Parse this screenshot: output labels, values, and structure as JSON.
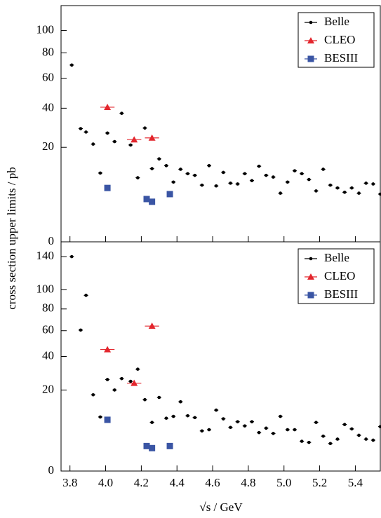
{
  "chart_data": [
    {
      "type": "scatter",
      "ylabel": "cross section upper limits / pb",
      "yscale": "sqrt",
      "ylim": [
        0,
        125
      ],
      "yticks": [
        0,
        20,
        40,
        60,
        80,
        100
      ],
      "series": [
        {
          "name": "Belle",
          "color": "#000000",
          "marker": "circle",
          "xerr": 0.012,
          "x": [
            3.81,
            3.86,
            3.89,
            3.93,
            3.97,
            4.01,
            4.05,
            4.09,
            4.14,
            4.18,
            4.22,
            4.26,
            4.3,
            4.34,
            4.38,
            4.42,
            4.46,
            4.5,
            4.54,
            4.58,
            4.62,
            4.66,
            4.7,
            4.74,
            4.78,
            4.82,
            4.86,
            4.9,
            4.94,
            4.98,
            5.02,
            5.06,
            5.1,
            5.14,
            5.18,
            5.22,
            5.26,
            5.3,
            5.34,
            5.38,
            5.42,
            5.46,
            5.5,
            5.54
          ],
          "values": [
            70,
            28.7,
            27,
            21.4,
            10.6,
            26.5,
            22.5,
            37,
            21,
            9.2,
            29,
            12,
            15.4,
            13,
            8,
            11.8,
            10.4,
            9.9,
            7.2,
            13,
            7,
            10.8,
            7.7,
            7.5,
            10.4,
            8.4,
            12.8,
            9.9,
            9.4,
            5.3,
            8,
            11.3,
            10.4,
            8.7,
            5.8,
            11.8,
            7.2,
            6.5,
            5.5,
            6.5,
            5.3,
            7.7,
            7.5,
            5.1
          ]
        },
        {
          "name": "CLEO",
          "color": "#e3262d",
          "marker": "triangle",
          "xerr": 0.04,
          "x": [
            4.01,
            4.16,
            4.26
          ],
          "values": [
            40.6,
            23.4,
            24.2
          ]
        },
        {
          "name": "BESIII",
          "color": "#3a55a4",
          "marker": "square",
          "xerr": 0,
          "x": [
            4.01,
            4.23,
            4.26,
            4.36
          ],
          "values": [
            6.5,
            4.1,
            3.6,
            5.1
          ]
        }
      ]
    },
    {
      "type": "scatter",
      "xlabel": "√s / GeV",
      "yscale": "sqrt",
      "xlim": [
        3.75,
        5.54
      ],
      "xticks": [
        3.8,
        {
          "value": 4,
          "label": "4.0"
        },
        4.2,
        4.4,
        4.6,
        4.8,
        {
          "value": 5,
          "label": "5.0"
        },
        5.2,
        5.4
      ],
      "ylim": [
        0,
        160
      ],
      "yticks": [
        0,
        20,
        40,
        60,
        80,
        100,
        140
      ],
      "series": [
        {
          "name": "Belle",
          "color": "#000000",
          "marker": "circle",
          "xerr": 0.012,
          "x": [
            3.81,
            3.86,
            3.89,
            3.93,
            3.97,
            4.01,
            4.05,
            4.09,
            4.14,
            4.18,
            4.22,
            4.26,
            4.3,
            4.34,
            4.38,
            4.42,
            4.46,
            4.5,
            4.54,
            4.58,
            4.62,
            4.66,
            4.7,
            4.74,
            4.78,
            4.82,
            4.86,
            4.9,
            4.94,
            4.98,
            5.02,
            5.06,
            5.1,
            5.14,
            5.18,
            5.22,
            5.26,
            5.3,
            5.34,
            5.38,
            5.42,
            5.46,
            5.5,
            5.54
          ],
          "values": [
            140,
            60.5,
            94,
            17.7,
            8.9,
            25.5,
            20,
            26,
            24.5,
            31.6,
            15.5,
            7.2,
            16.5,
            8.5,
            9.1,
            14.6,
            9.3,
            8.7,
            4.9,
            5.2,
            11.3,
            8.3,
            5.8,
            7.4,
            6.2,
            7.4,
            4.5,
            5.6,
            4.3,
            9.1,
            5.2,
            5.2,
            2.7,
            2.5,
            7.2,
            3.7,
            2.3,
            3.1,
            6.6,
            5.4,
            3.9,
            3.1,
            2.9,
            6.0
          ]
        },
        {
          "name": "CLEO",
          "color": "#e3262d",
          "marker": "triangle",
          "xerr": 0.04,
          "x": [
            4.01,
            4.16,
            4.26
          ],
          "values": [
            45,
            23.5,
            64
          ]
        },
        {
          "name": "BESIII",
          "color": "#3a55a4",
          "marker": "square",
          "xerr": 0,
          "x": [
            4.01,
            4.23,
            4.26,
            4.36
          ],
          "values": [
            8,
            1.9,
            1.6,
            1.9
          ]
        }
      ]
    }
  ]
}
